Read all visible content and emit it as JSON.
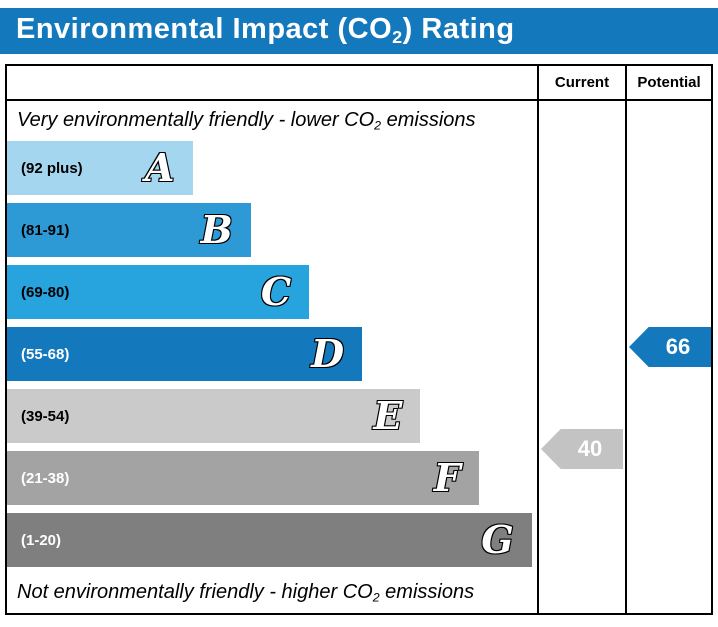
{
  "colors": {
    "title_bar": "#1478bd",
    "border": "#000000",
    "current_marker": "#c3c3c3",
    "potential_marker": "#1478bd"
  },
  "title": {
    "pre": "Environmental Impact (CO",
    "sub": "2",
    "post": ") Rating"
  },
  "columns": {
    "current": "Current",
    "potential": "Potential"
  },
  "notes": {
    "top": {
      "pre": "Very environmentally friendly - lower CO",
      "sub": "2",
      "post": " emissions"
    },
    "bottom": {
      "pre": "Not environmentally friendly - higher CO",
      "sub": "2",
      "post": " emissions"
    }
  },
  "bands": [
    {
      "letter": "A",
      "range": "(92 plus)",
      "color": "#a5d6ef",
      "label_color": "#000000",
      "width_pct": 35
    },
    {
      "letter": "B",
      "range": "(81-91)",
      "color": "#2d9ad6",
      "label_color": "#000000",
      "width_pct": 46
    },
    {
      "letter": "C",
      "range": "(69-80)",
      "color": "#27a3de",
      "label_color": "#000000",
      "width_pct": 57
    },
    {
      "letter": "D",
      "range": "(55-68)",
      "color": "#1478bd",
      "label_color": "#ffffff",
      "width_pct": 67
    },
    {
      "letter": "E",
      "range": "(39-54)",
      "color": "#cacaca",
      "label_color": "#000000",
      "width_pct": 78
    },
    {
      "letter": "F",
      "range": "(21-38)",
      "color": "#a3a3a3",
      "label_color": "#ffffff",
      "width_pct": 89
    },
    {
      "letter": "G",
      "range": "(1-20)",
      "color": "#7f7f7f",
      "label_color": "#ffffff",
      "width_pct": 99
    }
  ],
  "current": {
    "value": "40",
    "band": "E",
    "color": "#c3c3c3"
  },
  "potential": {
    "value": "66",
    "band": "D",
    "color": "#1478bd"
  },
  "chart_data": {
    "type": "bar",
    "title": "Environmental Impact (CO2) Rating",
    "categories": [
      "A",
      "B",
      "C",
      "D",
      "E",
      "F",
      "G"
    ],
    "band_ranges": [
      "92 plus",
      "81-91",
      "69-80",
      "55-68",
      "39-54",
      "21-38",
      "1-20"
    ],
    "bar_relative_widths": [
      0.35,
      0.46,
      0.57,
      0.67,
      0.78,
      0.89,
      0.99
    ],
    "markers": [
      {
        "name": "Current",
        "value": 40,
        "band": "E"
      },
      {
        "name": "Potential",
        "value": 66,
        "band": "D"
      }
    ],
    "annotations": [
      "Very environmentally friendly - lower CO2 emissions",
      "Not environmentally friendly - higher CO2 emissions"
    ],
    "columns": [
      "Current",
      "Potential"
    ],
    "grid": false
  }
}
